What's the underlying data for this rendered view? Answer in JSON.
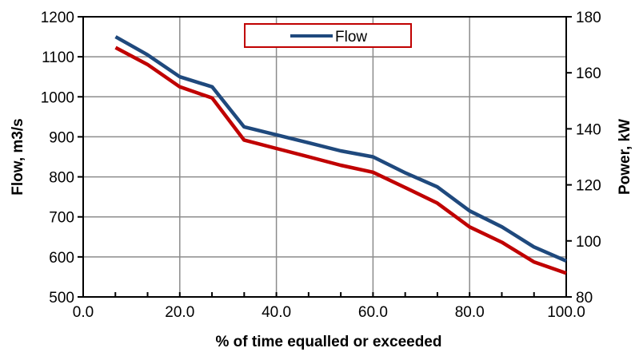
{
  "chart_data": {
    "type": "line",
    "title": "",
    "xlabel": "% of time equalled or exceeded",
    "ylabel": "Flow, m3/s",
    "y2label": "Power, kW",
    "xlim": [
      0,
      100
    ],
    "ylim": [
      500,
      1200
    ],
    "y2lim": [
      80,
      180
    ],
    "x_ticks": [
      "0.0",
      "20.0",
      "40.0",
      "60.0",
      "80.0",
      "100.0"
    ],
    "y_ticks": [
      "500",
      "600",
      "700",
      "800",
      "900",
      "1000",
      "1100",
      "1200"
    ],
    "y2_ticks": [
      "80",
      "100",
      "120",
      "140",
      "160",
      "180"
    ],
    "grid": true,
    "legend": {
      "position": "top-center",
      "entries": [
        "Flow"
      ]
    },
    "series": [
      {
        "name": "Flow",
        "axis": "left",
        "color": "#1f497d",
        "x": [
          6.7,
          13.3,
          20.0,
          26.7,
          33.3,
          40.0,
          46.7,
          53.3,
          60.0,
          66.7,
          73.3,
          80.0,
          86.7,
          93.3,
          100.0
        ],
        "y": [
          1150,
          1105,
          1050,
          1025,
          925,
          905,
          885,
          865,
          850,
          810,
          775,
          715,
          675,
          625,
          590
        ]
      },
      {
        "axis": "right",
        "color": "#c00000",
        "x": [
          6.7,
          13.3,
          20.0,
          26.7,
          33.3,
          40.0,
          46.7,
          53.3,
          60.0,
          66.7,
          73.3,
          80.0,
          86.7,
          93.3,
          100.0
        ],
        "y": [
          169,
          163,
          155,
          151,
          136,
          133,
          130,
          127,
          124.5,
          119,
          113.5,
          105,
          99.5,
          92.5,
          88.5
        ]
      }
    ]
  }
}
